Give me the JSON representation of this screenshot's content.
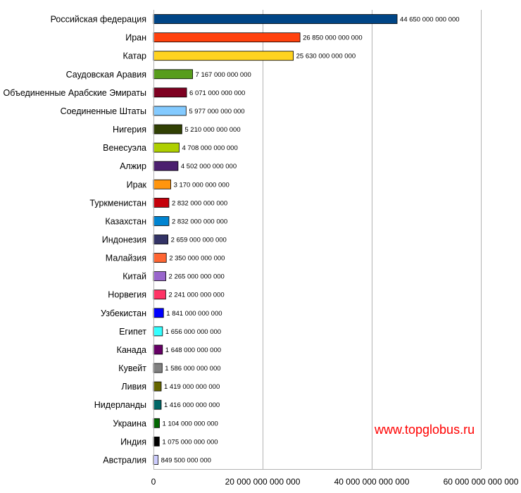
{
  "chart_data": {
    "type": "bar",
    "orientation": "horizontal",
    "categories": [
      "Российская федерация",
      "Иран",
      "Катар",
      "Саудовская Аравия",
      "Объединенные Арабские Эмираты",
      "Соединенные Штаты",
      "Нигерия",
      "Венесуэла",
      "Алжир",
      "Ирак",
      "Туркменистан",
      "Казахстан",
      "Индонезия",
      "Малайзия",
      "Китай",
      "Норвегия",
      "Узбекистан",
      "Египет",
      "Канада",
      "Кувейт",
      "Ливия",
      "Нидерланды",
      "Украина",
      "Индия",
      "Австралия"
    ],
    "values": [
      44650000000000,
      26850000000000,
      25630000000000,
      7167000000000,
      6071000000000,
      5977000000000,
      5210000000000,
      4708000000000,
      4502000000000,
      3170000000000,
      2832000000000,
      2832000000000,
      2659000000000,
      2350000000000,
      2265000000000,
      2241000000000,
      1841000000000,
      1656000000000,
      1648000000000,
      1586000000000,
      1419000000000,
      1416000000000,
      1104000000000,
      1075000000000,
      849500000000
    ],
    "value_labels": [
      "44 650 000 000 000",
      "26 850 000 000 000",
      "25 630 000 000 000",
      "7 167 000 000 000",
      "6 071 000 000 000",
      "5 977 000 000 000",
      "5 210 000 000 000",
      "4 708 000 000 000",
      "4 502 000 000 000",
      "3 170 000 000 000",
      "2 832 000 000 000",
      "2 832 000 000 000",
      "2 659 000 000 000",
      "2 350 000 000 000",
      "2 265 000 000 000",
      "2 241 000 000 000",
      "1 841 000 000 000",
      "1 656 000 000 000",
      "1 648 000 000 000",
      "1 586 000 000 000",
      "1 419 000 000 000",
      "1 416 000 000 000",
      "1 104 000 000 000",
      "1 075 000 000 000",
      "849 500 000 000"
    ],
    "colors": [
      "#004586",
      "#ff420e",
      "#ffd320",
      "#579d1c",
      "#7e0021",
      "#83caff",
      "#314004",
      "#aecf00",
      "#4b1f6f",
      "#ff950e",
      "#c5000b",
      "#0084d1",
      "#333366",
      "#ff6633",
      "#9966cc",
      "#ff3366",
      "#0000ff",
      "#33ffff",
      "#660066",
      "#808080",
      "#666600",
      "#006666",
      "#006600",
      "#000000",
      "#ccccff"
    ],
    "xlim": [
      0,
      60000000000000
    ],
    "xticks": [
      0,
      20000000000000,
      40000000000000,
      60000000000000
    ],
    "xtick_labels": [
      "0",
      "20 000 000 000 000",
      "40 000 000 000 000",
      "60 000 000 000 000"
    ],
    "xgrid": true,
    "title": "",
    "xlabel": "",
    "ylabel": ""
  },
  "watermark": "www.topglobus.ru"
}
